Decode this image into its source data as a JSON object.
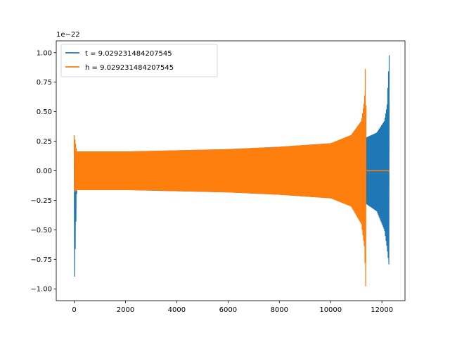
{
  "chart_data": {
    "type": "line",
    "title": "",
    "xlabel": "",
    "ylabel": "",
    "y_offset_label": "1e−22",
    "xlim": [
      -700,
      12900
    ],
    "ylim": [
      -1.1,
      1.1
    ],
    "x_ticks": [
      0,
      2000,
      4000,
      6000,
      8000,
      10000,
      12000
    ],
    "x_tick_labels": [
      "0",
      "2000",
      "4000",
      "6000",
      "8000",
      "10000",
      "12000"
    ],
    "y_ticks": [
      -1.0,
      -0.75,
      -0.5,
      -0.25,
      0.0,
      0.25,
      0.5,
      0.75,
      1.0
    ],
    "y_tick_labels": [
      "−1.00",
      "−0.75",
      "−0.50",
      "−0.25",
      "0.00",
      "0.25",
      "0.50",
      "0.75",
      "1.00"
    ],
    "grid": false,
    "legend_position": "upper-left",
    "series": [
      {
        "name": "t = 9.029231484207545",
        "color": "#1f77b4",
        "envelope_x": [
          0,
          100,
          2000,
          4000,
          6000,
          8000,
          10000,
          11000,
          11380,
          11400,
          11800,
          12100,
          12200,
          12290
        ],
        "envelope_upper": [
          0.3,
          0.16,
          0.16,
          0.17,
          0.18,
          0.2,
          0.23,
          0.26,
          0.28,
          0.28,
          0.32,
          0.42,
          0.55,
          1.01
        ],
        "envelope_lower": [
          -1.01,
          -0.16,
          -0.16,
          -0.17,
          -0.18,
          -0.2,
          -0.23,
          -0.26,
          -0.28,
          -0.28,
          -0.34,
          -0.5,
          -0.65,
          -0.83
        ]
      },
      {
        "name": "h = 9.029231484207545",
        "color": "#ff7f0e",
        "envelope_x": [
          0,
          100,
          2000,
          4000,
          6000,
          8000,
          10000,
          10800,
          11200,
          11320,
          11370,
          11390
        ],
        "envelope_upper": [
          0.3,
          0.16,
          0.16,
          0.17,
          0.18,
          0.2,
          0.23,
          0.3,
          0.42,
          0.6,
          1.01,
          0.0
        ],
        "envelope_lower": [
          -0.18,
          -0.16,
          -0.16,
          -0.17,
          -0.18,
          -0.2,
          -0.23,
          -0.3,
          -0.45,
          -0.65,
          -1.01,
          0.0
        ],
        "flat_after": [
          11400,
          12300
        ]
      }
    ]
  }
}
